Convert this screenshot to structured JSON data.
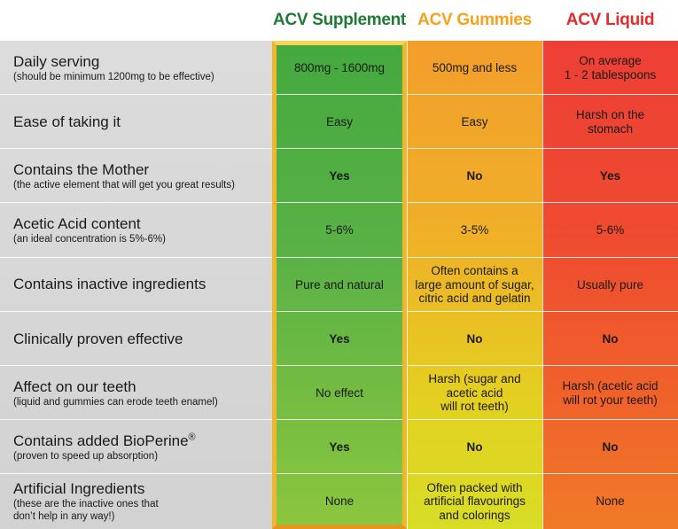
{
  "headers": {
    "supplement": "ACV Supplement",
    "gummies": "ACV Gummies",
    "liquid": "ACV Liquid"
  },
  "rows": [
    {
      "title": "Daily serving",
      "title_sup": "",
      "sub": "(should be minimum 1200mg to be effective)",
      "supplement": "800mg - 1600mg",
      "gummies": "500mg and less",
      "liquid": "On average\n1 - 2 tablespoons"
    },
    {
      "title": "Ease of taking it",
      "title_sup": "",
      "sub": "",
      "supplement": "Easy",
      "gummies": "Easy",
      "liquid": "Harsh on the\nstomach"
    },
    {
      "title": "Contains the Mother",
      "title_sup": "",
      "sub": "(the active element that will get you great results)",
      "supplement": "Yes",
      "gummies": "No",
      "liquid": "Yes"
    },
    {
      "title": "Acetic Acid content",
      "title_sup": "",
      "sub": "(an ideal concentration is 5%-6%)",
      "supplement": "5-6%",
      "gummies": "3-5%",
      "liquid": "5-6%"
    },
    {
      "title": "Contains inactive ingredients",
      "title_sup": "",
      "sub": "",
      "supplement": "Pure and natural",
      "gummies": "Often contains a\nlarge amount of sugar,\ncitric acid and gelatin",
      "liquid": "Usually pure"
    },
    {
      "title": "Clinically proven effective",
      "title_sup": "",
      "sub": "",
      "supplement": "Yes",
      "gummies": "No",
      "liquid": "No"
    },
    {
      "title": "Affect on our teeth",
      "title_sup": "",
      "sub": "(liquid and gummies can erode teeth enamel)",
      "supplement": "No effect",
      "gummies": "Harsh (sugar and\nacetic acid\nwill rot teeth)",
      "liquid": "Harsh (acetic acid\nwill rot your teeth)"
    },
    {
      "title": "Contains added BioPerine",
      "title_sup": "®",
      "sub": "(proven to speed up absorption)",
      "supplement": "Yes",
      "gummies": "No",
      "liquid": "No"
    },
    {
      "title": "Artificial Ingredients",
      "title_sup": "",
      "sub": "(these are the inactive ones that\ndon’t help in any way!)",
      "supplement": "None",
      "gummies": "Often packed with\nartificial flavourings\nand colorings",
      "liquid": "None"
    }
  ],
  "colors": {
    "supplement_header": "#1f7a32",
    "gummies_header": "#f5a21c",
    "liquid_header": "#e52b2b",
    "highlight_border": "#f0b72a"
  }
}
